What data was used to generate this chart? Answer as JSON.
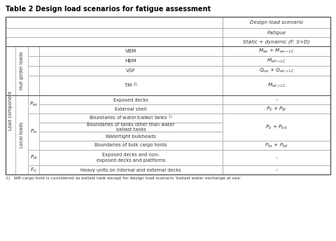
{
  "title": "Table 2 Design load scenarios for fatigue assessment",
  "header_col": "Design load scenario",
  "sub_header1": "Fatigue",
  "sub_header2": "Static + dynamic (F: S+D)",
  "footnote": "1)   WB cargo hold is considered as ballast tank except for design load scenario ‘ballast water exchange at sea’.",
  "hull_rows": [
    {
      "label": "VBM",
      "value": "$M_{sw}$ + $M_{wv-LC}$"
    },
    {
      "label": "HBM",
      "value": "$M_{wh-LC}$"
    },
    {
      "label": "VSF",
      "value": "$Q_{sw}$ + $Q_{wv-LC}$"
    },
    {
      "label": "TM $^{2)}$",
      "value": "$M_{wt-LC}$"
    }
  ],
  "local_rows": [
    {
      "subcat": "$P_{ex}$",
      "desc": "Exposed decks",
      "value": "-",
      "subcat_span": 2
    },
    {
      "subcat": "$P_{ex}$",
      "desc": "External shell",
      "value": "$P_S$ + $P_W$",
      "subcat_span": 0
    },
    {
      "subcat": "$P_{in}$",
      "desc": "Boundaries of water ballast tanks $^{1)}$",
      "value": "",
      "subcat_span": 4
    },
    {
      "subcat": "$P_{in}$",
      "desc": "Boundaries of tanks other than water ballast tanks",
      "value": "$P_b$ + $P_{bd}$",
      "subcat_span": 0
    },
    {
      "subcat": "$P_{in}$",
      "desc": "Watertight bulkheads",
      "value": "",
      "subcat_span": 0
    },
    {
      "subcat": "$P_{in}$",
      "desc": "Boundaries of bulk cargo holds",
      "value": "$P_{bs}$ + $P_{bd}$",
      "subcat_span": 0
    },
    {
      "subcat": "$P_{dl}$",
      "desc": "Exposed decks and non-\nexposed decks and platforms",
      "value": "-",
      "subcat_span": 1
    },
    {
      "subcat": "$F_U$",
      "desc": "Heavy units on internal and external decks",
      "value": "-",
      "subcat_span": 1
    }
  ],
  "bg_color": "#ffffff",
  "line_color": "#aaaaaa",
  "strong_line": "#555555",
  "text_color": "#333333",
  "title_color": "#000000",
  "title_fontsize": 7.0,
  "cell_fontsize": 5.2,
  "label_fontsize": 4.8
}
